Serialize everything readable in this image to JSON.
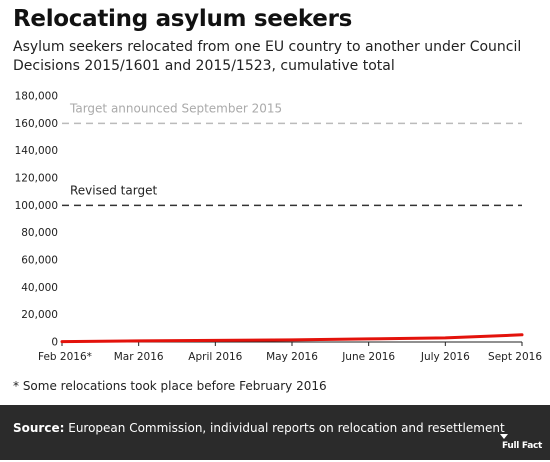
{
  "title": "Relocating asylum seekers",
  "subtitle": "Asylum seekers relocated from one EU country to another under Council Decisions 2015/1601 and 2015/1523, cumulative total",
  "footnote": "* Some relocations took place before February 2016",
  "source_label": "Source:",
  "source_text": "European Commission, individual reports on relocation and resettlement",
  "logo_text": "Full Fact",
  "colors": {
    "series": "#e3120b",
    "target_old": "#bbbbbb",
    "target_new": "#333333",
    "footer_bg": "#2b2b2b"
  },
  "chart_data": {
    "type": "line",
    "title": "Relocating asylum seekers",
    "xlabel": "",
    "ylabel": "",
    "ylim": [
      0,
      180000
    ],
    "yticks": [
      0,
      20000,
      40000,
      60000,
      80000,
      100000,
      120000,
      140000,
      160000,
      180000
    ],
    "ytick_labels": [
      "0",
      "20,000",
      "40,000",
      "60,000",
      "80,000",
      "100,000",
      "120,000",
      "140,000",
      "160,000",
      "180,000"
    ],
    "x_labels": [
      "Feb 2016*",
      "Mar 2016",
      "April 2016",
      "May 2016",
      "June 2016",
      "July 2016",
      "Sept 2016"
    ],
    "grid": false,
    "series": [
      {
        "values": [
          300,
          800,
          1200,
          1500,
          2300,
          3000,
          5300
        ]
      }
    ],
    "reference_lines": [
      {
        "label": "Target announced September 2015",
        "value": 160000,
        "style": "dashed-grey"
      },
      {
        "label": "Revised target",
        "value": 100000,
        "style": "dashed-dark"
      }
    ]
  }
}
